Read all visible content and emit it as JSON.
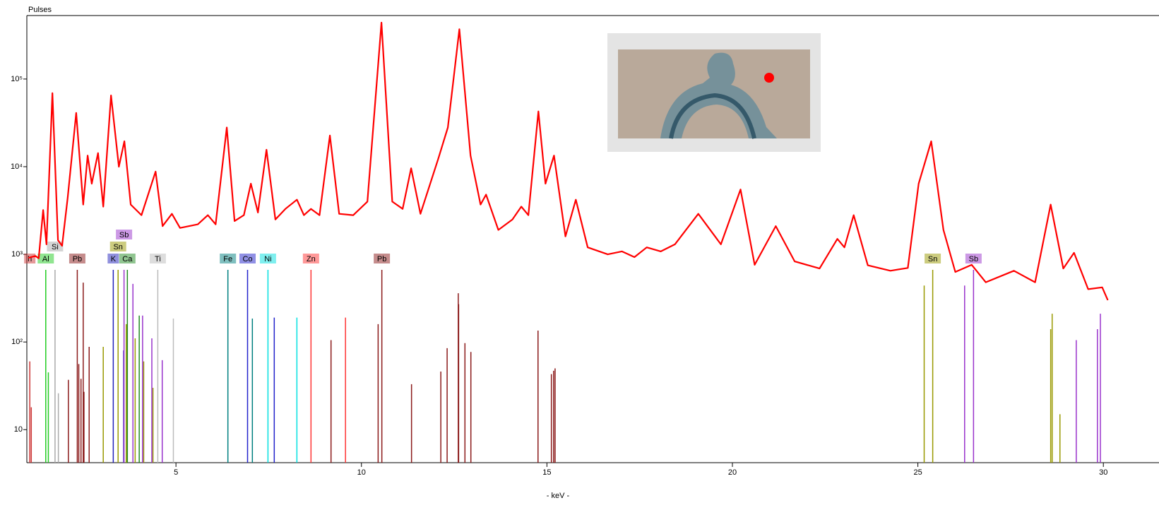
{
  "chart_data": {
    "type": "line",
    "y_label": "Pulses",
    "x_label": "- keV -",
    "log_y": true,
    "xlim": [
      0.98,
      31.5
    ],
    "ylim": [
      4.2,
      530000
    ],
    "xticks": [
      5,
      10,
      15,
      20,
      25,
      30
    ],
    "yticks": [
      10,
      {
        "value": 100,
        "label": "10²"
      },
      {
        "value": 1000,
        "label": "10³"
      },
      {
        "value": 10000,
        "label": "10⁴"
      },
      {
        "value": 100000,
        "label": "10⁵"
      }
    ],
    "series": [
      {
        "color": "#ff0000",
        "x": [
          1.02,
          1.21,
          1.3,
          1.42,
          1.51,
          1.67,
          1.82,
          1.93,
          2.08,
          2.31,
          2.5,
          2.62,
          2.73,
          2.9,
          3.04,
          3.25,
          3.46,
          3.61,
          3.78,
          4.07,
          4.45,
          4.64,
          4.89,
          5.11,
          5.59,
          5.86,
          6.07,
          6.37,
          6.58,
          6.83,
          7.02,
          7.21,
          7.44,
          7.68,
          7.95,
          8.26,
          8.45,
          8.64,
          8.87,
          9.15,
          9.4,
          9.78,
          10.16,
          10.54,
          10.83,
          11.11,
          11.34,
          11.59,
          12.07,
          12.33,
          12.64,
          12.94,
          13.21,
          13.36,
          13.69,
          14.07,
          14.31,
          14.5,
          14.77,
          14.96,
          15.19,
          15.5,
          15.78,
          16.1,
          16.64,
          17.02,
          17.36,
          17.69,
          18.07,
          18.45,
          19.08,
          19.69,
          20.22,
          20.6,
          21.17,
          21.68,
          22.35,
          22.83,
          23.02,
          23.27,
          23.65,
          24.26,
          24.73,
          25.02,
          25.36,
          25.69,
          26.01,
          26.45,
          26.83,
          27.59,
          28.16,
          28.58,
          28.92,
          29.21,
          29.59,
          29.97,
          30.12
        ],
        "values": [
          910,
          960,
          900,
          3200,
          1300,
          69000,
          1450,
          1250,
          4400,
          41000,
          3700,
          13400,
          6400,
          14300,
          3500,
          65000,
          10000,
          19500,
          3700,
          2800,
          8800,
          2100,
          2900,
          2000,
          2200,
          2800,
          2200,
          28000,
          2400,
          2800,
          6400,
          3000,
          15600,
          2500,
          3300,
          4200,
          2800,
          3300,
          2800,
          22700,
          2900,
          2800,
          4000,
          440000,
          4000,
          3300,
          9600,
          2900,
          12300,
          28000,
          370000,
          13400,
          3700,
          4800,
          1900,
          2500,
          3500,
          2800,
          42700,
          6400,
          13400,
          1600,
          4200,
          1200,
          1000,
          1080,
          930,
          1200,
          1080,
          1300,
          2900,
          1300,
          5500,
          760,
          2100,
          830,
          690,
          1500,
          1200,
          2800,
          750,
          650,
          700,
          6400,
          19500,
          1900,
          630,
          760,
          480,
          650,
          480,
          3700,
          690,
          1040,
          400,
          420,
          300
        ]
      }
    ],
    "emission_lines": [
      {
        "label": "h",
        "color": "#cc3333",
        "energies": [
          1.06,
          1.1
        ],
        "intensities": [
          60,
          18
        ]
      },
      {
        "label": "Al",
        "color": "#22cc22",
        "energies": [
          1.49,
          1.56
        ],
        "intensities": [
          665,
          45
        ]
      },
      {
        "label": "Si",
        "color": "#aaaaaa",
        "energies": [
          1.74,
          1.83
        ],
        "intensities": [
          665,
          26
        ]
      },
      {
        "label": "Pb",
        "color": "#8b1a1a",
        "energies": [
          2.1,
          2.34,
          2.38,
          2.44,
          2.5,
          2.52,
          2.66
        ],
        "intensities": [
          37,
          665,
          56,
          38,
          475,
          27,
          88
        ]
      },
      {
        "label": "K",
        "color": "#2222bb",
        "energies": [
          3.31,
          3.59
        ],
        "intensities": [
          665,
          80
        ]
      },
      {
        "label": "Ca",
        "color": "#228b22",
        "energies": [
          3.69,
          4.01
        ],
        "intensities": [
          665,
          200
        ]
      },
      {
        "label": "Sn",
        "color": "#999900",
        "energies": [
          3.04,
          3.44,
          3.66,
          3.9,
          4.13,
          4.38
        ],
        "intensities": [
          88,
          665,
          160,
          110,
          60,
          30
        ]
      },
      {
        "label": "Sb",
        "color": "#9933cc",
        "energies": [
          3.6,
          3.84,
          4.1,
          4.35,
          4.63
        ],
        "intensities": [
          665,
          460,
          200,
          110,
          62
        ]
      },
      {
        "label": "Ti",
        "color": "#bbbbbb",
        "energies": [
          4.51,
          4.93
        ],
        "intensities": [
          665,
          185
        ]
      },
      {
        "label": "Fe",
        "color": "#008080",
        "energies": [
          6.4,
          7.06
        ],
        "intensities": [
          665,
          185
        ]
      },
      {
        "label": "Co",
        "color": "#2222cc",
        "energies": [
          6.93,
          7.65
        ],
        "intensities": [
          665,
          190
        ]
      },
      {
        "label": "Ni",
        "color": "#00e0e0",
        "energies": [
          7.48,
          8.26
        ],
        "intensities": [
          665,
          190
        ]
      },
      {
        "label": "Zn",
        "color": "#ff3333",
        "energies": [
          8.64,
          9.57
        ],
        "intensities": [
          665,
          190
        ]
      },
      {
        "label": "Pb",
        "color": "#8b1a1a",
        "energies": [
          9.18,
          10.45,
          10.55,
          11.35,
          12.14,
          12.31,
          12.61,
          12.62,
          12.79,
          12.95,
          14.76,
          15.12,
          15.18,
          15.22
        ],
        "intensities": [
          105,
          160,
          665,
          33,
          46,
          85,
          360,
          270,
          97,
          77,
          135,
          43,
          47,
          50
        ]
      },
      {
        "label": "Sn",
        "color": "#999900",
        "energies": [
          25.17,
          25.4,
          28.58,
          28.62,
          28.83
        ],
        "intensities": [
          440,
          665,
          140,
          210,
          15
        ]
      },
      {
        "label": "Sb",
        "color": "#9933cc",
        "energies": [
          26.26,
          26.5,
          29.27,
          29.84,
          29.92
        ],
        "intensities": [
          440,
          665,
          105,
          140,
          210
        ]
      }
    ]
  }
}
